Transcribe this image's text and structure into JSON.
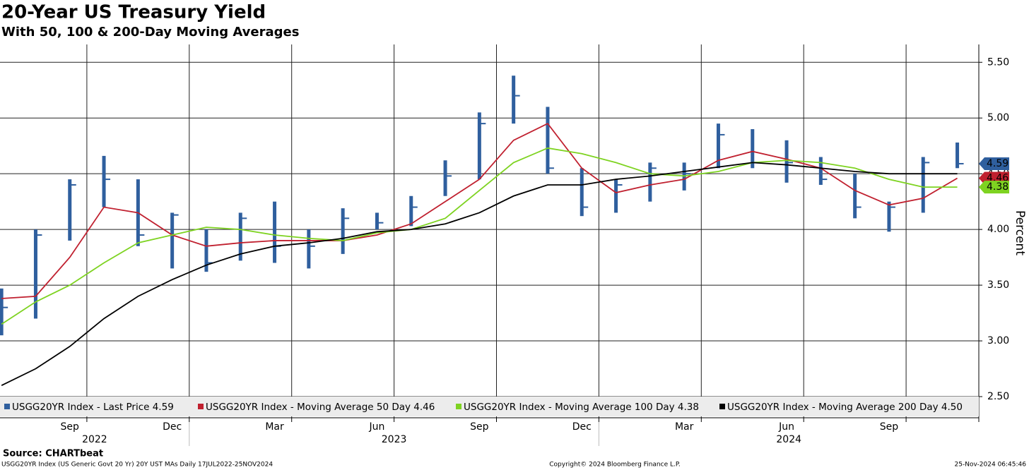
{
  "chart_data": {
    "type": "line",
    "title": "20-Year US Treasury Yield",
    "subtitle": "With 50, 100 & 200-Day Moving Averages",
    "y_label": "Percent",
    "source": "Source: CHARTbeat",
    "footnote": "USGG20YR Index (US Generic Govt 20 Yr) 20Y UST MAs  Daily 17JUL2022-25NOV2024",
    "copyright": "Copyright© 2024 Bloomberg Finance L.P.",
    "timestamp": "25-Nov-2024 06:45:46",
    "grid": true,
    "x": [
      "2022-07",
      "2022-08",
      "2022-09",
      "2022-10",
      "2022-11",
      "2022-12",
      "2023-01",
      "2023-02",
      "2023-03",
      "2023-04",
      "2023-05",
      "2023-06",
      "2023-07",
      "2023-08",
      "2023-09",
      "2023-10",
      "2023-11",
      "2023-12",
      "2024-01",
      "2024-02",
      "2024-03",
      "2024-04",
      "2024-05",
      "2024-06",
      "2024-07",
      "2024-08",
      "2024-09",
      "2024-10",
      "2024-11"
    ],
    "xlim": [
      "2022-07",
      "2024-12"
    ],
    "xticks": [
      {
        "value": "2022-09",
        "label": "Sep"
      },
      {
        "value": "2022-12",
        "label": "Dec"
      },
      {
        "value": "2023-03",
        "label": "Mar"
      },
      {
        "value": "2023-06",
        "label": "Jun"
      },
      {
        "value": "2023-09",
        "label": "Sep"
      },
      {
        "value": "2023-12",
        "label": "Dec"
      },
      {
        "value": "2024-03",
        "label": "Mar"
      },
      {
        "value": "2024-06",
        "label": "Jun"
      },
      {
        "value": "2024-09",
        "label": "Sep"
      }
    ],
    "year_labels": [
      "2022",
      "2023",
      "2024"
    ],
    "ylim": [
      2.31,
      5.66
    ],
    "yticks": [
      {
        "value": 2.5,
        "label": "2.50"
      },
      {
        "value": 3,
        "label": "3.00"
      },
      {
        "value": 3.5,
        "label": "3.50"
      },
      {
        "value": 4,
        "label": "4.00"
      },
      {
        "value": 4.5,
        "label": "4.50"
      },
      {
        "value": 5,
        "label": "5.00"
      },
      {
        "value": 5.5,
        "label": "5.50"
      }
    ],
    "series": [
      {
        "name": "USGG20YR Index - Last Price 4.59",
        "color": "#2f5f9e",
        "last_label": "4.59",
        "low": [
          3.05,
          3.2,
          3.9,
          4.2,
          3.85,
          3.65,
          3.62,
          3.72,
          3.7,
          3.65,
          3.78,
          4.0,
          4.03,
          4.3,
          4.45,
          4.95,
          4.5,
          4.12,
          4.15,
          4.25,
          4.35,
          4.55,
          4.55,
          4.42,
          4.4,
          4.1,
          3.98,
          4.15,
          4.55
        ],
        "high": [
          3.47,
          4.0,
          4.45,
          4.66,
          4.45,
          4.15,
          4.0,
          4.15,
          4.25,
          4.0,
          4.19,
          4.15,
          4.3,
          4.62,
          5.05,
          5.38,
          5.1,
          4.55,
          4.45,
          4.6,
          4.6,
          4.95,
          4.9,
          4.8,
          4.65,
          4.5,
          4.25,
          4.65,
          4.78
        ],
        "values": [
          3.3,
          3.95,
          4.4,
          4.45,
          3.95,
          4.13,
          3.7,
          4.1,
          3.85,
          3.85,
          4.1,
          4.06,
          4.2,
          4.48,
          4.95,
          5.2,
          4.55,
          4.2,
          4.4,
          4.55,
          4.5,
          4.85,
          4.6,
          4.6,
          4.45,
          4.2,
          4.2,
          4.6,
          4.59
        ]
      },
      {
        "name": "USGG20YR Index - Moving Average 50 Day 4.46",
        "color": "#c0202f",
        "last_label": "4.46",
        "values": [
          3.38,
          3.4,
          3.75,
          4.2,
          4.15,
          3.95,
          3.85,
          3.88,
          3.9,
          3.9,
          3.9,
          3.95,
          4.05,
          4.25,
          4.45,
          4.8,
          4.95,
          4.55,
          4.33,
          4.4,
          4.45,
          4.62,
          4.7,
          4.63,
          4.55,
          4.35,
          4.22,
          4.28,
          4.46
        ]
      },
      {
        "name": "USGG20YR Index - Moving Average 100 Day 4.38",
        "color": "#7ed321",
        "last_label": "4.38",
        "values": [
          3.15,
          3.35,
          3.5,
          3.7,
          3.88,
          3.95,
          4.02,
          4.0,
          3.95,
          3.92,
          3.9,
          3.97,
          4.0,
          4.1,
          4.35,
          4.6,
          4.73,
          4.68,
          4.6,
          4.5,
          4.48,
          4.52,
          4.6,
          4.62,
          4.6,
          4.55,
          4.45,
          4.38,
          4.38
        ]
      },
      {
        "name": "USGG20YR Index - Moving Average 200 Day 4.50",
        "color": "#000000",
        "values": [
          2.6,
          2.75,
          2.95,
          3.2,
          3.4,
          3.55,
          3.68,
          3.78,
          3.85,
          3.88,
          3.92,
          3.98,
          4.0,
          4.05,
          4.15,
          4.3,
          4.4,
          4.4,
          4.45,
          4.48,
          4.52,
          4.56,
          4.6,
          4.58,
          4.55,
          4.52,
          4.5,
          4.5,
          4.5
        ]
      }
    ]
  }
}
